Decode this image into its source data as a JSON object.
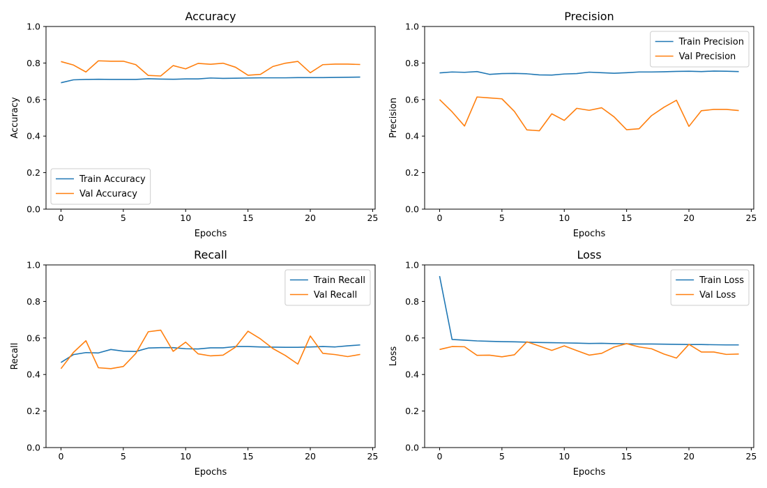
{
  "chart_data": [
    {
      "type": "line",
      "title": "Accuracy",
      "xlabel": "Epochs",
      "ylabel": "Accuracy",
      "xlim": [
        -1.2,
        25.2
      ],
      "ylim": [
        0.0,
        1.0
      ],
      "xticks": [
        0,
        5,
        10,
        15,
        20,
        25
      ],
      "yticks": [
        0.0,
        0.2,
        0.4,
        0.6,
        0.8,
        1.0
      ],
      "legend": "lower-left",
      "grid": false,
      "x": [
        0,
        1,
        2,
        3,
        4,
        5,
        6,
        7,
        8,
        9,
        10,
        11,
        12,
        13,
        14,
        15,
        16,
        17,
        18,
        19,
        20,
        21,
        22,
        23,
        24
      ],
      "series": [
        {
          "name": "Train Accuracy",
          "color": "#1f77b4",
          "values": [
            0.692,
            0.708,
            0.71,
            0.711,
            0.71,
            0.71,
            0.71,
            0.714,
            0.712,
            0.711,
            0.713,
            0.713,
            0.718,
            0.716,
            0.717,
            0.718,
            0.719,
            0.719,
            0.719,
            0.72,
            0.72,
            0.72,
            0.721,
            0.722,
            0.723
          ]
        },
        {
          "name": "Val Accuracy",
          "color": "#ff7f0e",
          "values": [
            0.808,
            0.789,
            0.751,
            0.812,
            0.81,
            0.81,
            0.791,
            0.732,
            0.729,
            0.786,
            0.768,
            0.798,
            0.793,
            0.799,
            0.777,
            0.733,
            0.738,
            0.781,
            0.799,
            0.809,
            0.747,
            0.791,
            0.794,
            0.794,
            0.792
          ]
        }
      ]
    },
    {
      "type": "line",
      "title": "Precision",
      "xlabel": "Epochs",
      "ylabel": "Precision",
      "xlim": [
        -1.2,
        25.2
      ],
      "ylim": [
        0.0,
        1.0
      ],
      "xticks": [
        0,
        5,
        10,
        15,
        20,
        25
      ],
      "yticks": [
        0.0,
        0.2,
        0.4,
        0.6,
        0.8,
        1.0
      ],
      "legend": "upper-right",
      "grid": false,
      "x": [
        0,
        1,
        2,
        3,
        4,
        5,
        6,
        7,
        8,
        9,
        10,
        11,
        12,
        13,
        14,
        15,
        16,
        17,
        18,
        19,
        20,
        21,
        22,
        23,
        24
      ],
      "series": [
        {
          "name": "Train Precision",
          "color": "#1f77b4",
          "values": [
            0.746,
            0.751,
            0.749,
            0.753,
            0.738,
            0.742,
            0.743,
            0.741,
            0.735,
            0.734,
            0.74,
            0.742,
            0.75,
            0.747,
            0.744,
            0.747,
            0.751,
            0.751,
            0.752,
            0.754,
            0.755,
            0.753,
            0.756,
            0.755,
            0.753
          ]
        },
        {
          "name": "Val Precision",
          "color": "#ff7f0e",
          "values": [
            0.6,
            0.533,
            0.455,
            0.614,
            0.609,
            0.604,
            0.535,
            0.434,
            0.429,
            0.522,
            0.486,
            0.552,
            0.541,
            0.555,
            0.505,
            0.435,
            0.44,
            0.512,
            0.558,
            0.596,
            0.453,
            0.539,
            0.546,
            0.546,
            0.54
          ]
        }
      ]
    },
    {
      "type": "line",
      "title": "Recall",
      "xlabel": "Epochs",
      "ylabel": "Recall",
      "xlim": [
        -1.2,
        25.2
      ],
      "ylim": [
        0.0,
        1.0
      ],
      "xticks": [
        0,
        5,
        10,
        15,
        20,
        25
      ],
      "yticks": [
        0.0,
        0.2,
        0.4,
        0.6,
        0.8,
        1.0
      ],
      "legend": "upper-right",
      "grid": false,
      "x": [
        0,
        1,
        2,
        3,
        4,
        5,
        6,
        7,
        8,
        9,
        10,
        11,
        12,
        13,
        14,
        15,
        16,
        17,
        18,
        19,
        20,
        21,
        22,
        23,
        24
      ],
      "series": [
        {
          "name": "Train Recall",
          "color": "#1f77b4",
          "values": [
            0.466,
            0.509,
            0.52,
            0.518,
            0.537,
            0.528,
            0.526,
            0.545,
            0.547,
            0.547,
            0.541,
            0.54,
            0.546,
            0.546,
            0.553,
            0.553,
            0.551,
            0.55,
            0.549,
            0.549,
            0.551,
            0.553,
            0.551,
            0.557,
            0.562
          ]
        },
        {
          "name": "Val Recall",
          "color": "#ff7f0e",
          "values": [
            0.432,
            0.521,
            0.585,
            0.437,
            0.432,
            0.444,
            0.515,
            0.634,
            0.643,
            0.527,
            0.577,
            0.513,
            0.502,
            0.506,
            0.55,
            0.637,
            0.595,
            0.542,
            0.504,
            0.457,
            0.611,
            0.516,
            0.509,
            0.498,
            0.51
          ]
        }
      ]
    },
    {
      "type": "line",
      "title": "Loss",
      "xlabel": "Epochs",
      "ylabel": "Loss",
      "xlim": [
        -1.2,
        25.2
      ],
      "ylim": [
        0.0,
        1.0
      ],
      "xticks": [
        0,
        5,
        10,
        15,
        20,
        25
      ],
      "yticks": [
        0.0,
        0.2,
        0.4,
        0.6,
        0.8,
        1.0
      ],
      "legend": "upper-right",
      "grid": false,
      "x": [
        0,
        1,
        2,
        3,
        4,
        5,
        6,
        7,
        8,
        9,
        10,
        11,
        12,
        13,
        14,
        15,
        16,
        17,
        18,
        19,
        20,
        21,
        22,
        23,
        24
      ],
      "series": [
        {
          "name": "Train Loss",
          "color": "#1f77b4",
          "values": [
            0.939,
            0.592,
            0.588,
            0.584,
            0.582,
            0.58,
            0.579,
            0.577,
            0.575,
            0.574,
            0.573,
            0.572,
            0.57,
            0.571,
            0.569,
            0.568,
            0.567,
            0.567,
            0.566,
            0.565,
            0.564,
            0.564,
            0.563,
            0.562,
            0.562
          ]
        },
        {
          "name": "Val Loss",
          "color": "#ff7f0e",
          "values": [
            0.537,
            0.553,
            0.552,
            0.505,
            0.506,
            0.497,
            0.508,
            0.579,
            0.556,
            0.532,
            0.557,
            0.531,
            0.506,
            0.516,
            0.55,
            0.569,
            0.551,
            0.541,
            0.512,
            0.49,
            0.565,
            0.523,
            0.523,
            0.51,
            0.512
          ]
        }
      ]
    }
  ]
}
